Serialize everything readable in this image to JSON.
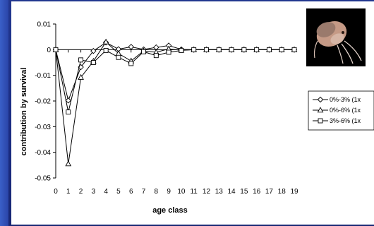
{
  "chart_data": {
    "type": "line",
    "title": "",
    "xlabel": "age class",
    "ylabel": "contribution by survival",
    "x": [
      0,
      1,
      2,
      3,
      4,
      5,
      6,
      7,
      8,
      9,
      10,
      11,
      12,
      13,
      14,
      15,
      16,
      17,
      18,
      19
    ],
    "x_ticks": [
      "0",
      "1",
      "2",
      "3",
      "4",
      "5",
      "6",
      "7",
      "8",
      "9",
      "10",
      "11",
      "12",
      "13",
      "14",
      "15",
      "16",
      "17",
      "18",
      "19"
    ],
    "ylim": [
      -0.05,
      0.01
    ],
    "y_ticks": [
      0.01,
      0,
      -0.01,
      -0.02,
      -0.03,
      -0.04,
      -0.05
    ],
    "y_tick_labels": [
      "0.01",
      "0",
      "-0.01",
      "-0.02",
      "-0.03",
      "-0.04",
      "-0.05"
    ],
    "grid": false,
    "legend_position": "right",
    "series": [
      {
        "name": "0%-3% (1x",
        "marker": "diamond",
        "values": [
          0,
          -0.0198,
          -0.0068,
          -0.0005,
          0.0028,
          0.0002,
          0.0011,
          0.0001,
          0.0009,
          0.0016,
          0.0001,
          0,
          0,
          0,
          0,
          0,
          0,
          0,
          0,
          0
        ]
      },
      {
        "name": "0%-6% (1x",
        "marker": "triangle",
        "values": [
          0,
          -0.0445,
          -0.0108,
          -0.0045,
          0.003,
          -0.0015,
          -0.0044,
          -0.0005,
          -0.001,
          0.0003,
          -0.0002,
          0,
          0,
          0,
          0,
          0,
          0,
          0,
          0,
          0
        ]
      },
      {
        "name": "3%-6% (1x",
        "marker": "square",
        "values": [
          0,
          -0.0243,
          -0.004,
          -0.005,
          -0.0003,
          -0.003,
          -0.0054,
          -0.0008,
          -0.0023,
          -0.001,
          -0.0003,
          0,
          0,
          0,
          0,
          0,
          0,
          0,
          0,
          0
        ]
      }
    ]
  },
  "photo": {
    "icon": "amphipod-photo"
  }
}
